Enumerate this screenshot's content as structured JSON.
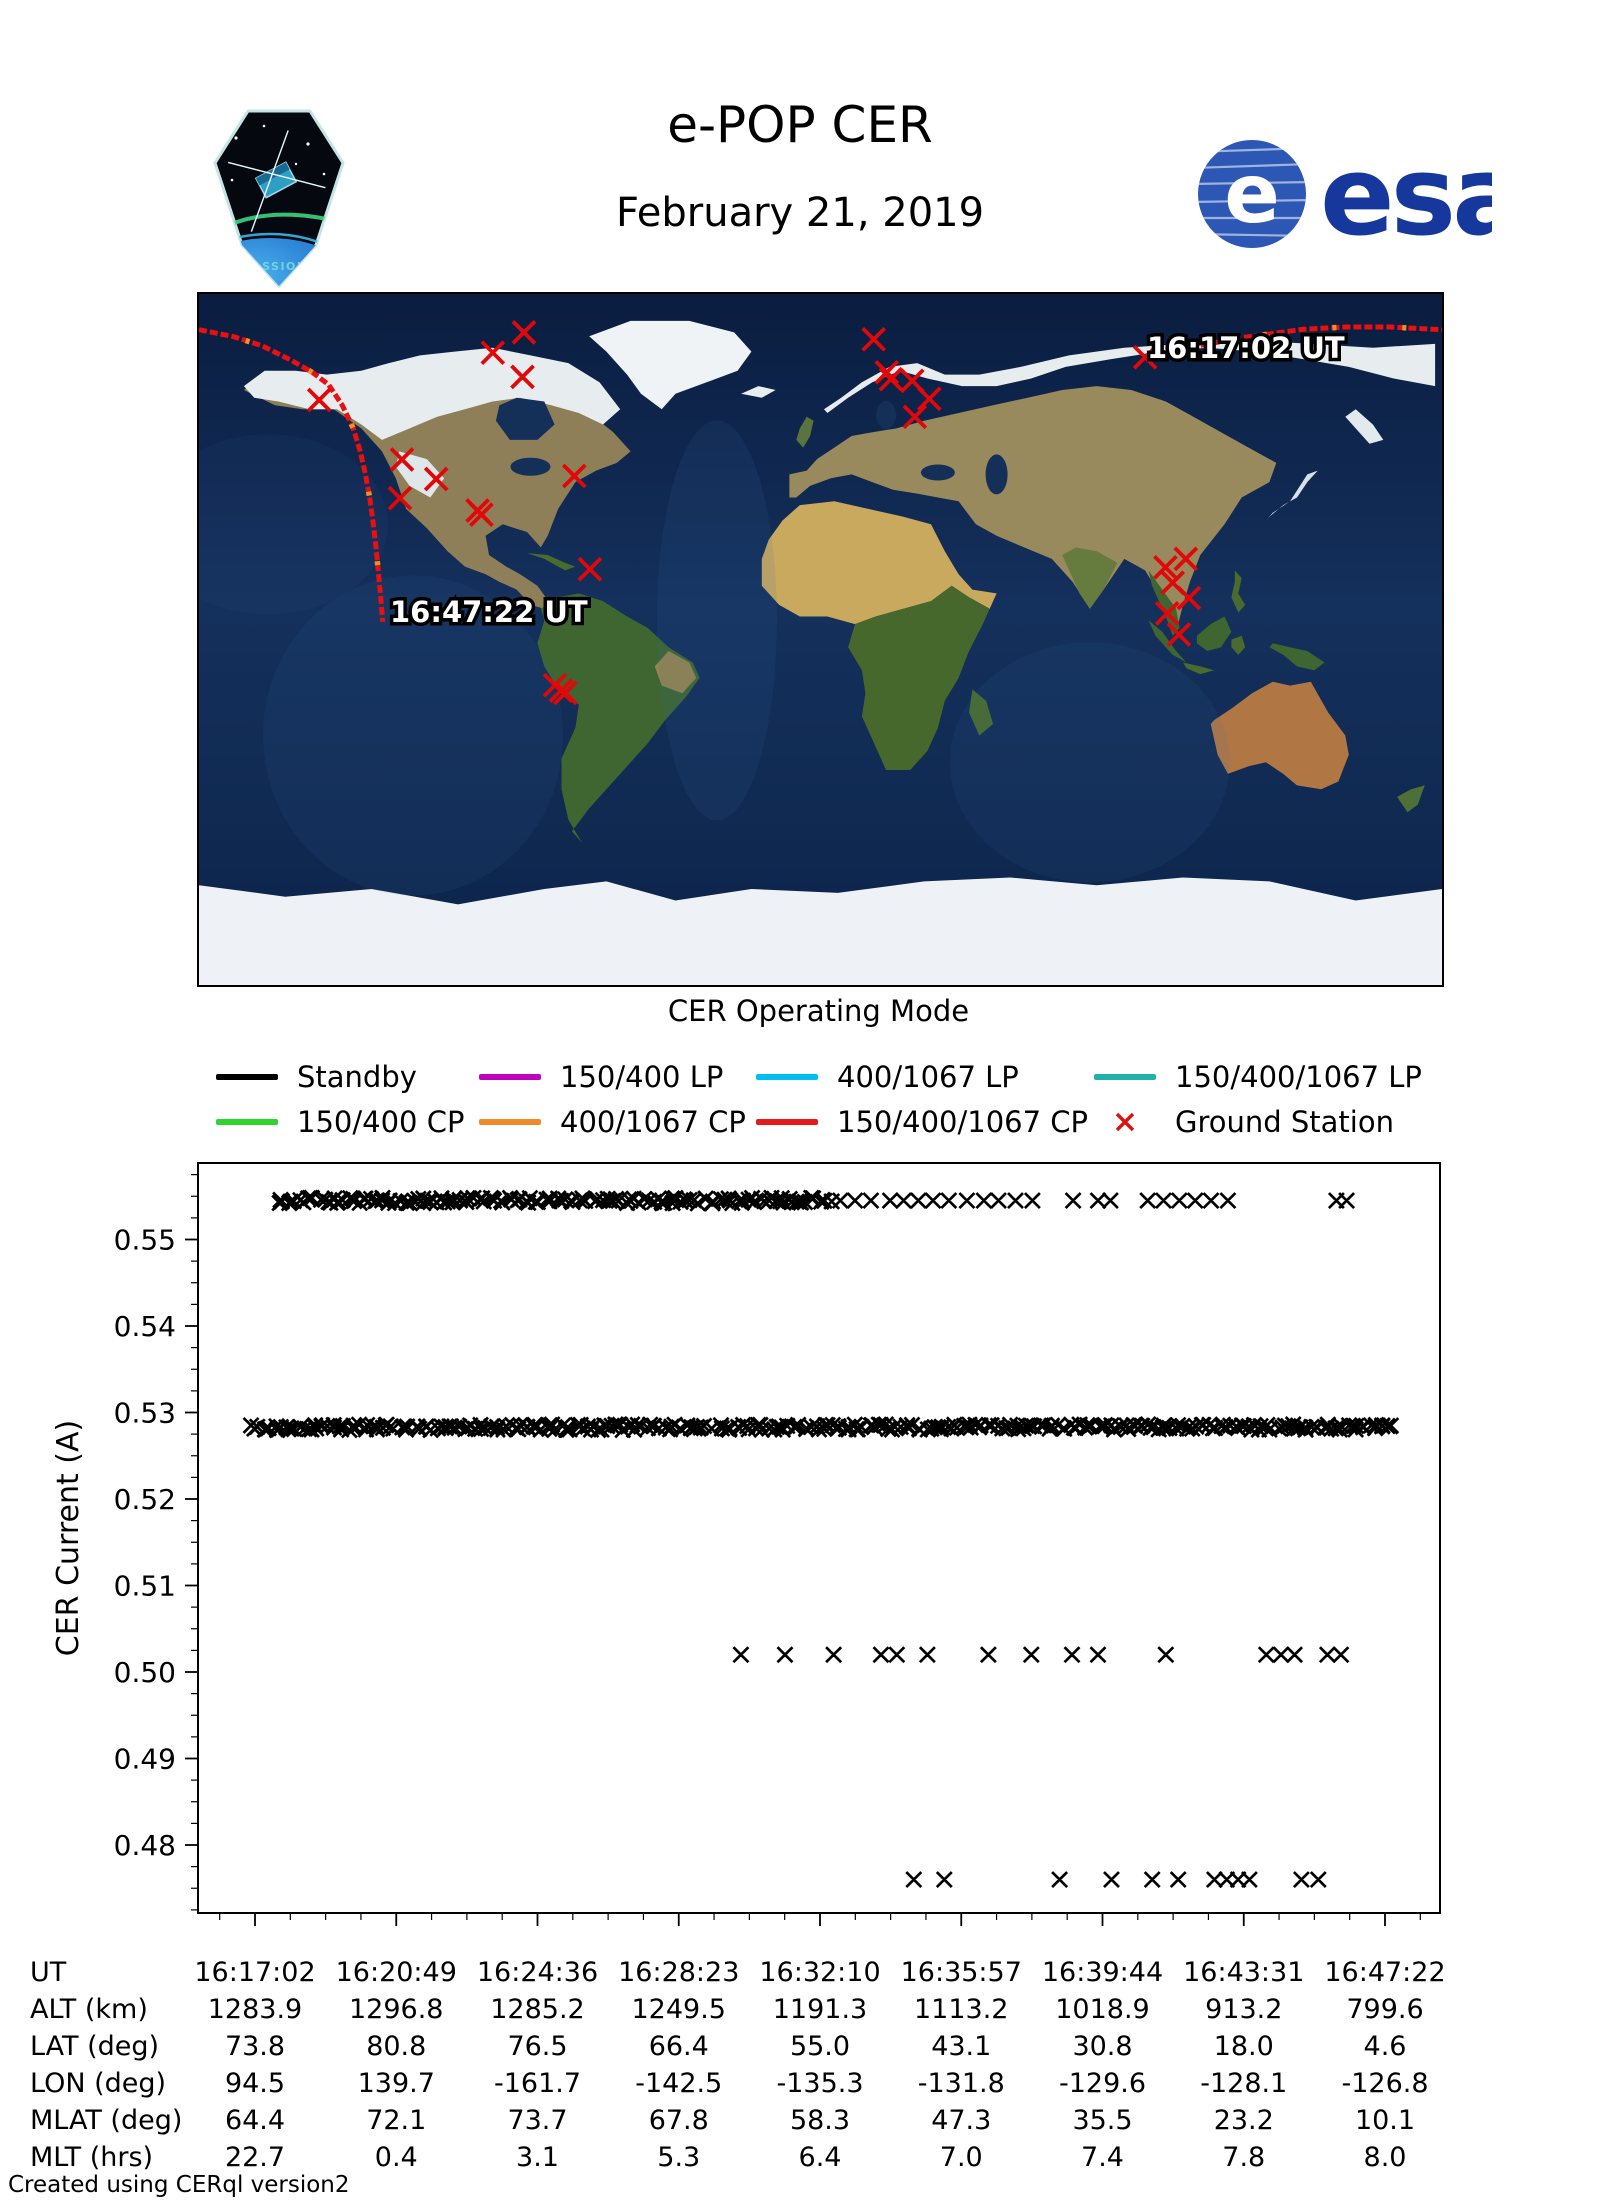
{
  "header": {
    "title": "e-POP CER",
    "subtitle": "February 21, 2019",
    "cassiope_label": "CASSIOPE",
    "esa_label": "esa"
  },
  "map": {
    "start_time_label": "16:17:02 UT",
    "end_time_label": "16:47:22 UT"
  },
  "legend": {
    "title": "CER Operating Mode",
    "items": [
      {
        "label": "Standby",
        "color": "#000000",
        "marker": "line"
      },
      {
        "label": "150/400 LP",
        "color": "#C000C0",
        "marker": "line"
      },
      {
        "label": "400/1067 LP",
        "color": "#00BFEF",
        "marker": "line"
      },
      {
        "label": "150/400/1067 LP",
        "color": "#20B2AA",
        "marker": "line"
      },
      {
        "label": "150/400 CP",
        "color": "#2FD42F",
        "marker": "line"
      },
      {
        "label": "400/1067 CP",
        "color": "#EF8A2C",
        "marker": "line"
      },
      {
        "label": "150/400/1067 CP",
        "color": "#E51A1A",
        "marker": "line"
      },
      {
        "label": "Ground Station",
        "color": "#E01010",
        "marker": "x"
      }
    ]
  },
  "chart_data": {
    "type": "scatter",
    "title": "",
    "xlabel": "",
    "ylabel": "CER Current (A)",
    "ylim": [
      0.472,
      0.559
    ],
    "yticks": [
      0.55,
      0.54,
      0.53,
      0.52,
      0.51,
      0.5,
      0.49,
      0.48
    ],
    "ytick_minor_step": 0.0025,
    "xtick_labels": [
      "16:17:02",
      "16:20:49",
      "16:24:36",
      "16:28:23",
      "16:32:10",
      "16:35:57",
      "16:39:44",
      "16:43:31",
      "16:47:22"
    ],
    "x_span_seconds": 1820,
    "marker": "x",
    "marker_color": "#000000",
    "series": [
      {
        "name": "current-band-0.5545",
        "current_a": 0.5545,
        "dense_segments": [
          {
            "from": 0.02,
            "to": 0.508,
            "count": 150
          }
        ],
        "points_frac": [
          0.518,
          0.531,
          0.545,
          0.562,
          0.574,
          0.587,
          0.6,
          0.614,
          0.63,
          0.645,
          0.658,
          0.673,
          0.688,
          0.724,
          0.746,
          0.757,
          0.79,
          0.804,
          0.818,
          0.832,
          0.846,
          0.861,
          0.957,
          0.966
        ]
      },
      {
        "name": "current-band-0.5283",
        "current_a": 0.5283,
        "dense_segments": [
          {
            "from": -0.002,
            "to": 1.008,
            "count": 320
          }
        ],
        "points_frac": []
      },
      {
        "name": "current-level-0.502",
        "current_a": 0.502,
        "dense_segments": [],
        "points_frac": [
          0.43,
          0.469,
          0.512,
          0.554,
          0.568,
          0.595,
          0.649,
          0.687,
          0.723,
          0.746,
          0.806,
          0.895,
          0.908,
          0.92,
          0.949,
          0.961
        ]
      },
      {
        "name": "current-level-0.476",
        "current_a": 0.476,
        "dense_segments": [],
        "points_frac": [
          0.583,
          0.61,
          0.712,
          0.758,
          0.794,
          0.817,
          0.849,
          0.86,
          0.87,
          0.88,
          0.926,
          0.941
        ]
      }
    ],
    "ground_track": {
      "color": "#E81010",
      "segment_east_lonlat": [
        [
          94.5,
          73.8
        ],
        [
          108,
          76.3
        ],
        [
          122,
          78.6
        ],
        [
          139.7,
          80.8
        ],
        [
          152,
          81.4
        ],
        [
          165,
          81.4
        ],
        [
          180,
          80.7
        ]
      ],
      "segment_west_lonlat": [
        [
          -180,
          80.7
        ],
        [
          -170,
          78.9
        ],
        [
          -161.7,
          76.5
        ],
        [
          -153,
          72.6
        ],
        [
          -147,
          69.5
        ],
        [
          -142.5,
          66.4
        ],
        [
          -138.5,
          61.0
        ],
        [
          -135.3,
          55.0
        ],
        [
          -133.3,
          49.0
        ],
        [
          -131.8,
          43.1
        ],
        [
          -130.6,
          37.0
        ],
        [
          -129.6,
          30.8
        ],
        [
          -128.8,
          24.4
        ],
        [
          -128.1,
          18.0
        ],
        [
          -127.4,
          11.3
        ],
        [
          -126.8,
          4.6
        ]
      ]
    },
    "ground_station_color": "#E00808",
    "ground_stations_lonlat": [
      [
        -85.9,
        80.0
      ],
      [
        -94.9,
        74.7
      ],
      [
        -86.3,
        68.4
      ],
      [
        -145.2,
        62.4
      ],
      [
        -121.2,
        46.9
      ],
      [
        -111.3,
        41.8
      ],
      [
        -121.8,
        36.8
      ],
      [
        -99.3,
        33.6
      ],
      [
        -98.2,
        32.5
      ],
      [
        -71.3,
        42.6
      ],
      [
        -66.8,
        18.3
      ],
      [
        -76.9,
        -11.9
      ],
      [
        -75.2,
        -13.3
      ],
      [
        -73.9,
        -13.9
      ],
      [
        15.4,
        78.2
      ],
      [
        19.2,
        69.6
      ],
      [
        20.4,
        67.8
      ],
      [
        26.6,
        67.4
      ],
      [
        31.5,
        62.7
      ],
      [
        27.3,
        58.0
      ],
      [
        94.0,
        73.5
      ],
      [
        99.9,
        18.8
      ],
      [
        105.8,
        21.0
      ],
      [
        102.0,
        14.8
      ],
      [
        106.7,
        10.8
      ],
      [
        100.4,
        6.8
      ],
      [
        103.8,
        1.3
      ]
    ]
  },
  "table": {
    "rows": [
      {
        "label": "UT",
        "values": [
          "16:17:02",
          "16:20:49",
          "16:24:36",
          "16:28:23",
          "16:32:10",
          "16:35:57",
          "16:39:44",
          "16:43:31",
          "16:47:22"
        ]
      },
      {
        "label": "ALT (km)",
        "values": [
          "1283.9",
          "1296.8",
          "1285.2",
          "1249.5",
          "1191.3",
          "1113.2",
          "1018.9",
          "913.2",
          "799.6"
        ]
      },
      {
        "label": "LAT (deg)",
        "values": [
          "73.8",
          "80.8",
          "76.5",
          "66.4",
          "55.0",
          "43.1",
          "30.8",
          "18.0",
          "4.6"
        ]
      },
      {
        "label": "LON (deg)",
        "values": [
          "94.5",
          "139.7",
          "-161.7",
          "-142.5",
          "-135.3",
          "-131.8",
          "-129.6",
          "-128.1",
          "-126.8"
        ]
      },
      {
        "label": "MLAT (deg)",
        "values": [
          "64.4",
          "72.1",
          "73.7",
          "67.8",
          "58.3",
          "47.3",
          "35.5",
          "23.2",
          "10.1"
        ]
      },
      {
        "label": "MLT (hrs)",
        "values": [
          "22.7",
          "0.4",
          "3.1",
          "5.3",
          "6.4",
          "7.0",
          "7.4",
          "7.8",
          "8.0"
        ]
      }
    ]
  },
  "footer": {
    "credit": "Created using CERql version2"
  }
}
